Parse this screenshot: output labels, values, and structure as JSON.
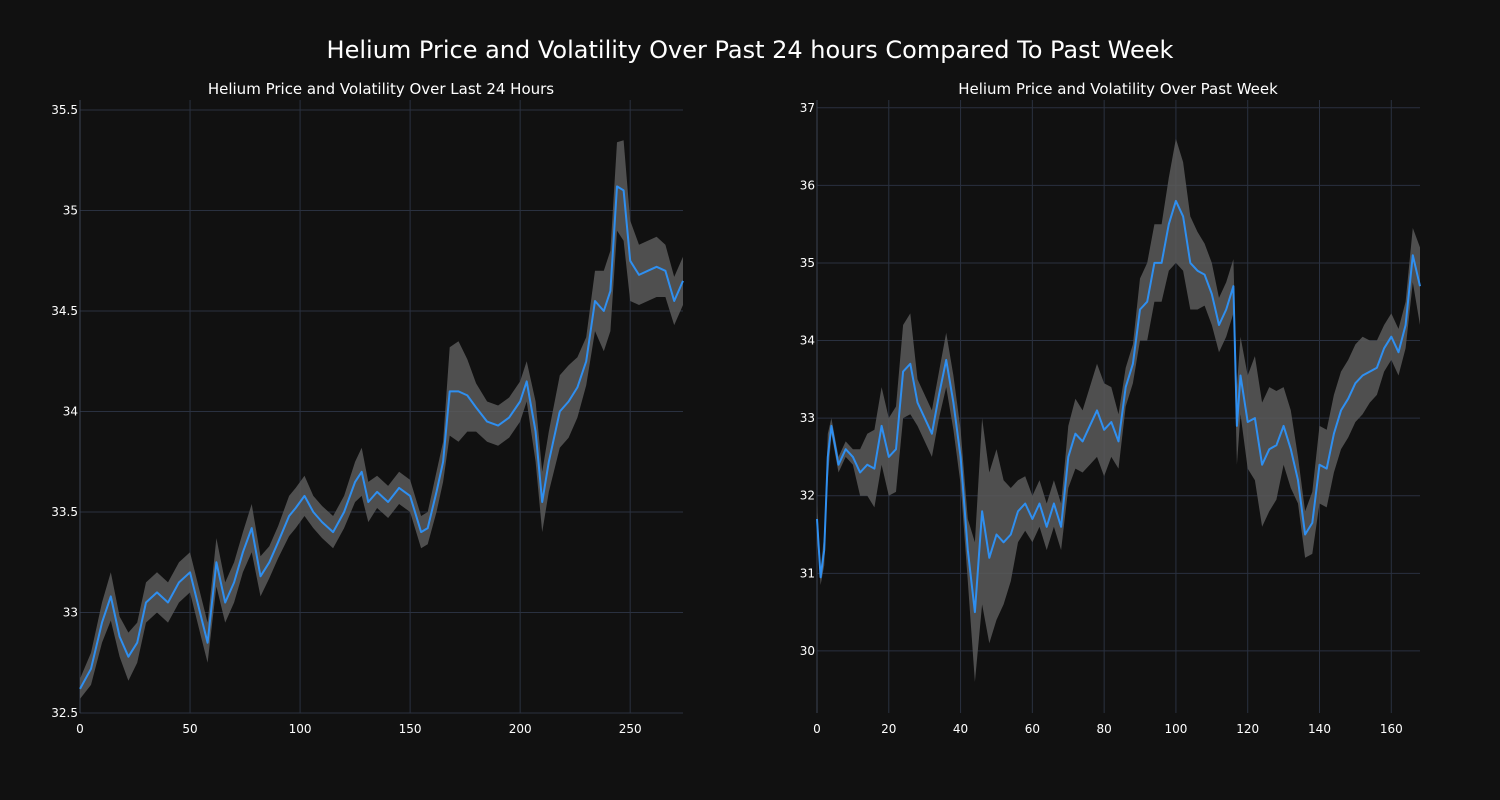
{
  "title": "Helium Price and Volatility Over Past 24 hours Compared To Past Week",
  "colors": {
    "background": "#111111",
    "line": "#2f8ff0",
    "band": "#5a5a5a",
    "grid": "#2a3140",
    "text": "#ffffff"
  },
  "chart_data": [
    {
      "type": "line",
      "title": "Helium Price and Volatility Over Last 24 Hours",
      "xlabel": "",
      "ylabel": "",
      "xlim": [
        0,
        274
      ],
      "ylim": [
        32.5,
        35.55
      ],
      "xticks": [
        0,
        50,
        100,
        150,
        200,
        250
      ],
      "yticks": [
        32.5,
        33,
        33.5,
        34,
        34.5,
        35,
        35.5
      ],
      "ytick_labels": [
        "32.5",
        "33",
        "33.5",
        "34",
        "34.5",
        "35",
        "35.5"
      ],
      "grid": true,
      "series": [
        {
          "x": [
            0,
            5,
            10,
            14,
            18,
            22,
            26,
            30,
            35,
            40,
            45,
            50,
            55,
            58,
            62,
            66,
            70,
            74,
            78,
            82,
            86,
            90,
            95,
            98,
            102,
            106,
            110,
            115,
            120,
            125,
            128,
            131,
            135,
            140,
            145,
            150,
            155,
            158,
            162,
            165,
            168,
            172,
            176,
            180,
            185,
            190,
            195,
            200,
            203,
            207,
            210,
            213,
            218,
            222,
            226,
            230,
            234,
            238,
            241,
            244,
            247,
            250,
            254,
            258,
            262,
            266,
            270,
            274
          ],
          "y": [
            32.62,
            32.72,
            32.95,
            33.08,
            32.88,
            32.78,
            32.85,
            33.05,
            33.1,
            33.05,
            33.15,
            33.2,
            32.98,
            32.85,
            33.25,
            33.05,
            33.15,
            33.3,
            33.42,
            33.18,
            33.25,
            33.35,
            33.48,
            33.52,
            33.58,
            33.5,
            33.45,
            33.4,
            33.5,
            33.65,
            33.7,
            33.55,
            33.6,
            33.55,
            33.62,
            33.58,
            33.4,
            33.42,
            33.6,
            33.75,
            34.1,
            34.1,
            34.08,
            34.02,
            33.95,
            33.93,
            33.97,
            34.05,
            34.15,
            33.9,
            33.55,
            33.75,
            34.0,
            34.05,
            34.12,
            34.25,
            34.55,
            34.5,
            34.6,
            35.12,
            35.1,
            34.75,
            34.68,
            34.7,
            34.72,
            34.7,
            34.55,
            34.65
          ],
          "band": [
            0.05,
            0.08,
            0.1,
            0.12,
            0.1,
            0.12,
            0.1,
            0.1,
            0.1,
            0.1,
            0.1,
            0.1,
            0.1,
            0.1,
            0.12,
            0.1,
            0.1,
            0.1,
            0.12,
            0.1,
            0.08,
            0.08,
            0.1,
            0.1,
            0.1,
            0.08,
            0.08,
            0.08,
            0.08,
            0.1,
            0.12,
            0.1,
            0.08,
            0.08,
            0.08,
            0.08,
            0.08,
            0.08,
            0.1,
            0.1,
            0.22,
            0.25,
            0.18,
            0.12,
            0.1,
            0.1,
            0.1,
            0.1,
            0.1,
            0.15,
            0.15,
            0.15,
            0.18,
            0.18,
            0.15,
            0.12,
            0.15,
            0.2,
            0.2,
            0.22,
            0.25,
            0.2,
            0.15,
            0.15,
            0.15,
            0.13,
            0.12,
            0.12
          ]
        }
      ]
    },
    {
      "type": "line",
      "title": "Helium Price and Volatility Over Past Week",
      "xlabel": "",
      "ylabel": "",
      "xlim": [
        0,
        168
      ],
      "ylim": [
        29.2,
        37.1
      ],
      "xticks": [
        0,
        20,
        40,
        60,
        80,
        100,
        120,
        140,
        160
      ],
      "yticks": [
        30,
        31,
        32,
        33,
        34,
        35,
        36,
        37
      ],
      "ytick_labels": [
        "30",
        "31",
        "32",
        "33",
        "34",
        "35",
        "36",
        "37"
      ],
      "grid": true,
      "series": [
        {
          "x": [
            0,
            1,
            2,
            3,
            4,
            6,
            8,
            10,
            12,
            14,
            16,
            18,
            20,
            22,
            24,
            26,
            28,
            30,
            32,
            34,
            36,
            38,
            40,
            42,
            44,
            46,
            48,
            50,
            52,
            54,
            56,
            58,
            60,
            62,
            64,
            66,
            68,
            70,
            72,
            74,
            76,
            78,
            80,
            82,
            84,
            86,
            88,
            90,
            92,
            94,
            96,
            98,
            100,
            102,
            104,
            106,
            108,
            110,
            112,
            114,
            116,
            117,
            118,
            120,
            122,
            124,
            126,
            128,
            130,
            132,
            134,
            136,
            138,
            140,
            142,
            144,
            146,
            148,
            150,
            152,
            154,
            156,
            158,
            160,
            162,
            164,
            166,
            168
          ],
          "y": [
            31.7,
            30.95,
            31.3,
            32.5,
            32.9,
            32.4,
            32.6,
            32.5,
            32.3,
            32.4,
            32.35,
            32.9,
            32.5,
            32.6,
            33.6,
            33.7,
            33.2,
            33.0,
            32.8,
            33.3,
            33.75,
            33.2,
            32.5,
            31.3,
            30.5,
            31.8,
            31.2,
            31.5,
            31.4,
            31.5,
            31.8,
            31.9,
            31.7,
            31.9,
            31.6,
            31.9,
            31.6,
            32.5,
            32.8,
            32.7,
            32.9,
            33.1,
            32.85,
            32.95,
            32.7,
            33.4,
            33.7,
            34.4,
            34.5,
            35.0,
            35.0,
            35.5,
            35.8,
            35.6,
            35.0,
            34.9,
            34.85,
            34.6,
            34.2,
            34.4,
            34.7,
            32.9,
            33.55,
            32.95,
            33.0,
            32.4,
            32.6,
            32.65,
            32.9,
            32.6,
            32.2,
            31.5,
            31.65,
            32.4,
            32.35,
            32.8,
            33.1,
            33.25,
            33.45,
            33.55,
            33.6,
            33.65,
            33.9,
            34.05,
            33.85,
            34.2,
            35.1,
            34.7
          ],
          "band": [
            0.2,
            0.1,
            0.2,
            0.3,
            0.1,
            0.1,
            0.1,
            0.1,
            0.3,
            0.4,
            0.5,
            0.5,
            0.5,
            0.55,
            0.6,
            0.65,
            0.3,
            0.3,
            0.3,
            0.3,
            0.35,
            0.35,
            0.35,
            0.4,
            0.9,
            1.2,
            1.1,
            1.1,
            0.8,
            0.6,
            0.4,
            0.35,
            0.3,
            0.3,
            0.3,
            0.3,
            0.3,
            0.4,
            0.45,
            0.4,
            0.5,
            0.6,
            0.6,
            0.45,
            0.35,
            0.25,
            0.25,
            0.4,
            0.5,
            0.5,
            0.5,
            0.6,
            0.8,
            0.7,
            0.6,
            0.5,
            0.4,
            0.4,
            0.35,
            0.35,
            0.35,
            0.5,
            0.5,
            0.6,
            0.8,
            0.8,
            0.8,
            0.7,
            0.5,
            0.5,
            0.3,
            0.3,
            0.4,
            0.5,
            0.5,
            0.5,
            0.5,
            0.5,
            0.5,
            0.5,
            0.4,
            0.35,
            0.3,
            0.3,
            0.3,
            0.3,
            0.35,
            0.5
          ]
        }
      ]
    }
  ]
}
